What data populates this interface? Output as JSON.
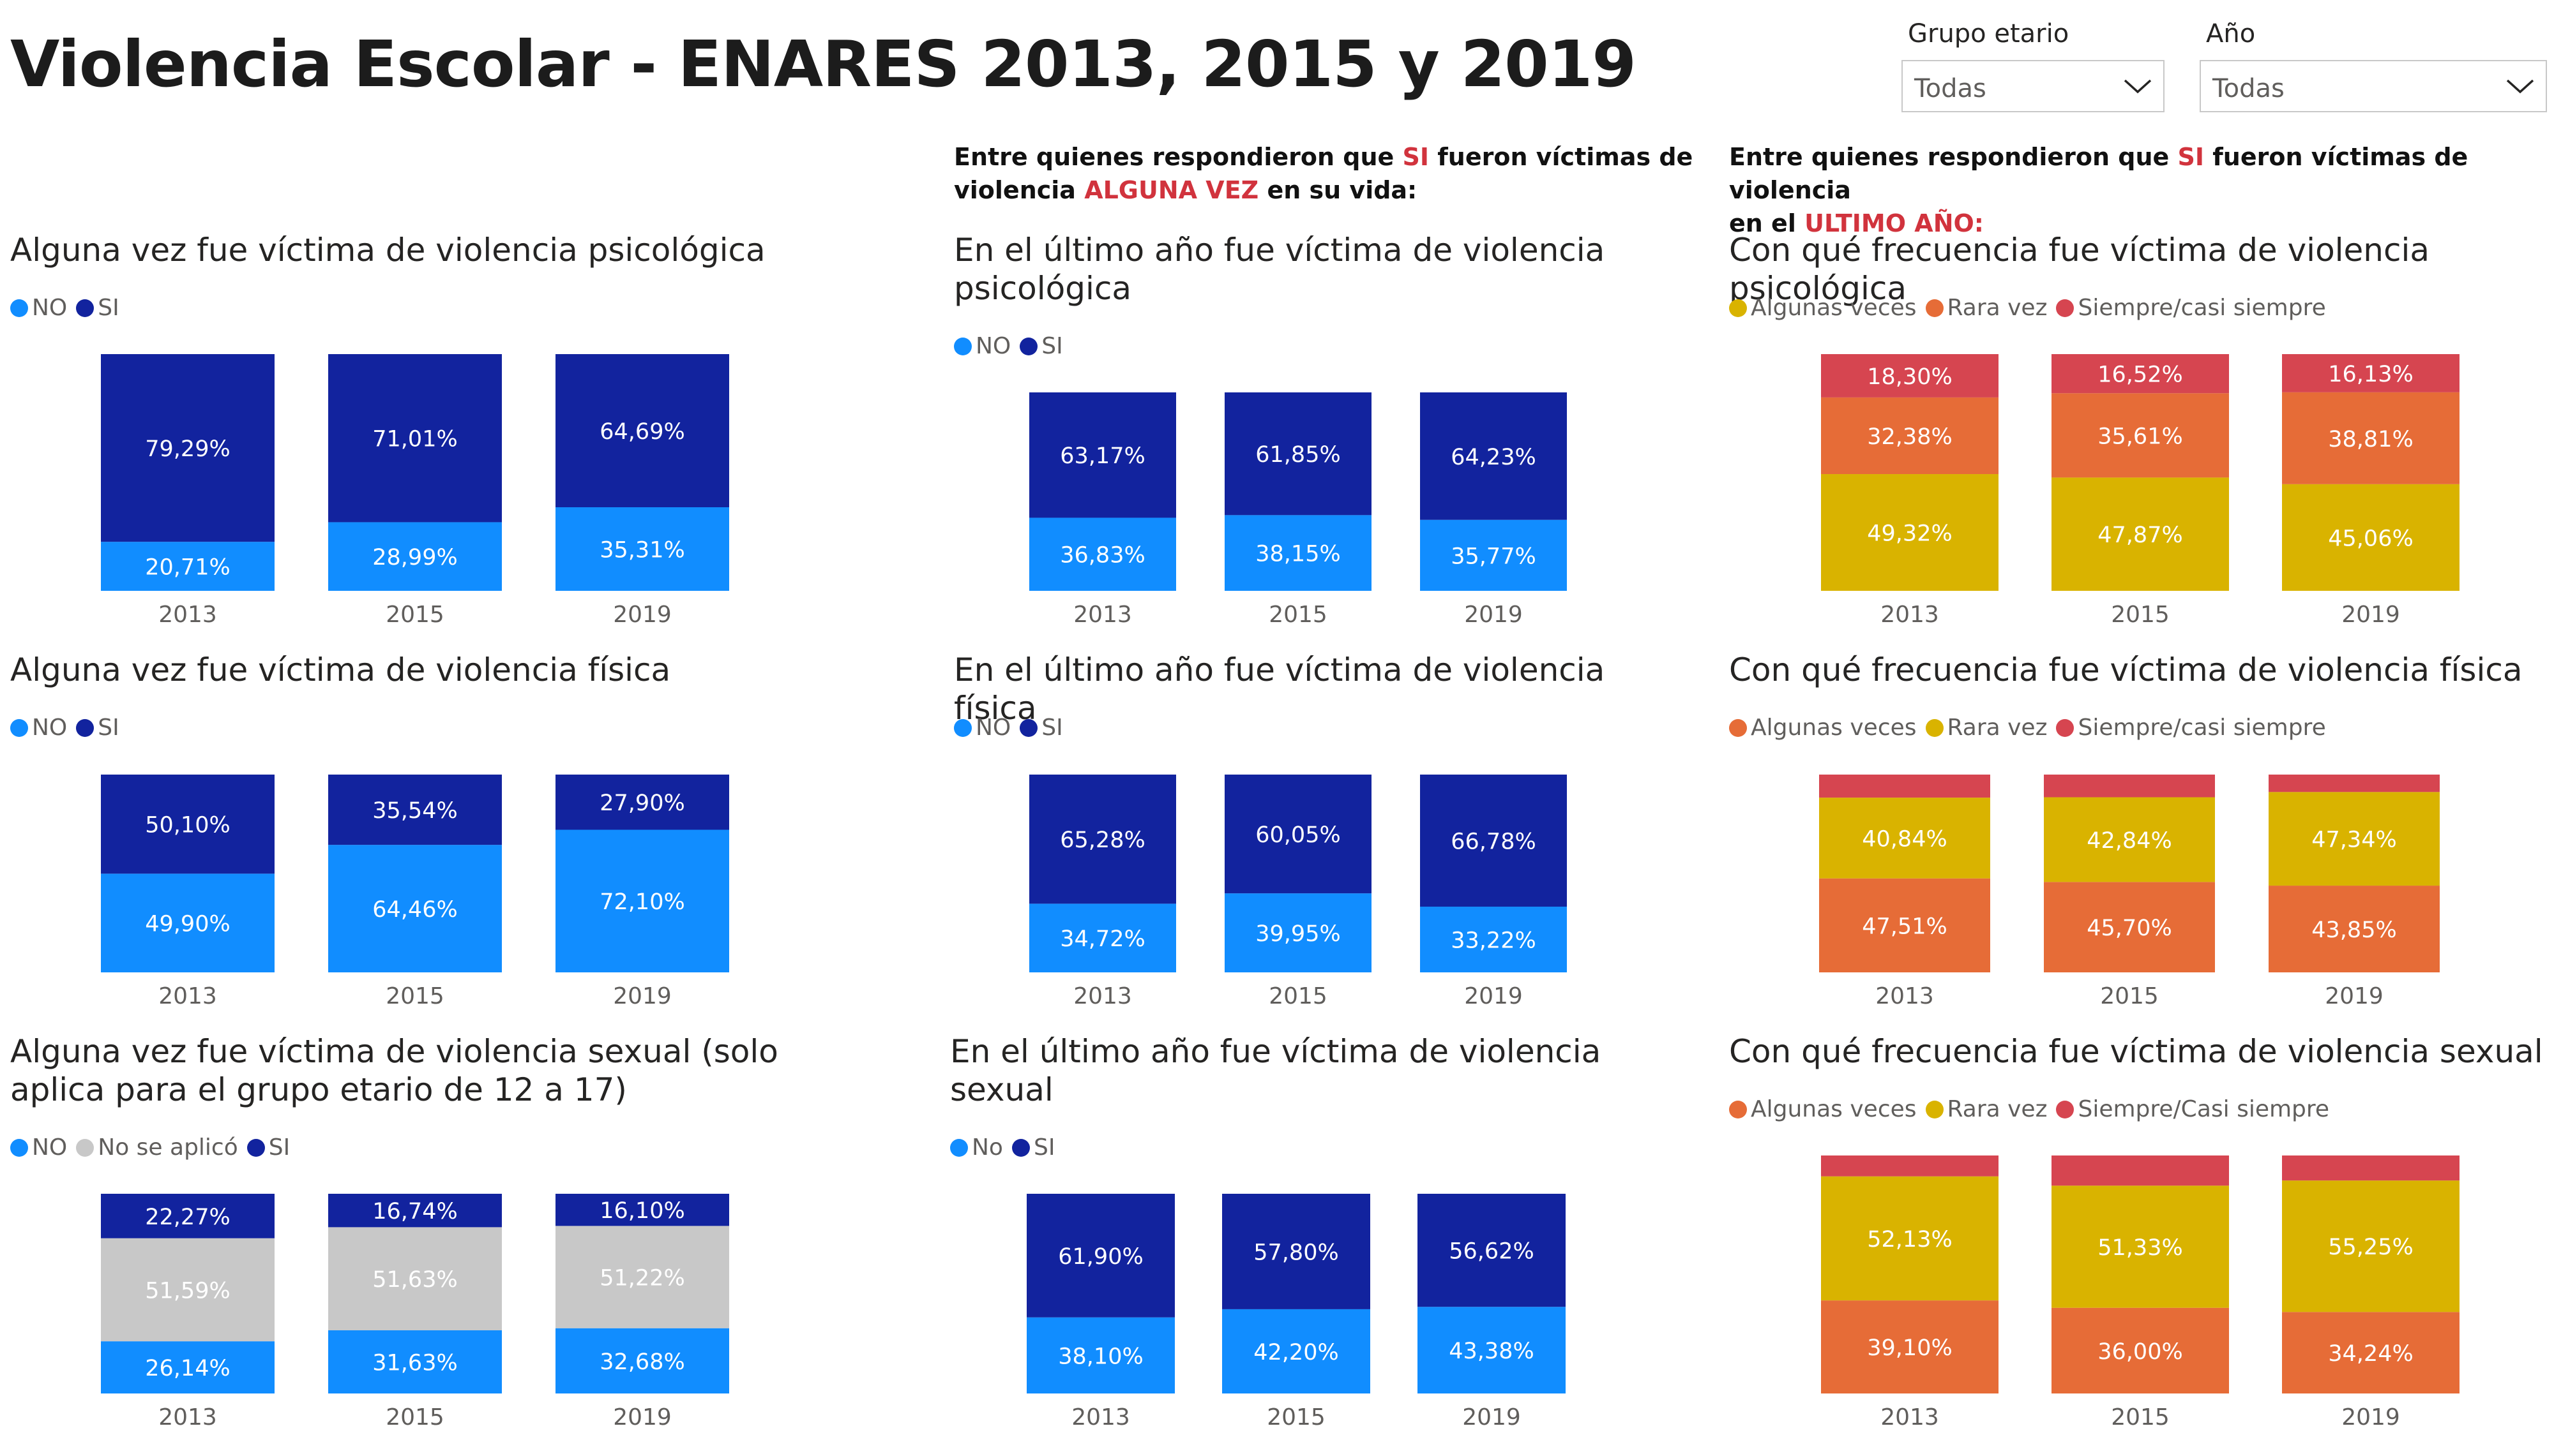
{
  "page": {
    "title": "Violencia Escolar - ENARES 2013, 2015 y 2019"
  },
  "slicers": [
    {
      "label": "Grupo etario",
      "value": "Todas"
    },
    {
      "label": "Año",
      "value": "Todas"
    }
  ],
  "section_heads": {
    "middle": {
      "line1_a": "Entre quienes respondieron que ",
      "line1_red": "SI",
      "line1_b": " fueron víctimas de",
      "line2_a": "violencia ",
      "line2_red": "ALGUNA VEZ",
      "line2_b": " en su vida:"
    },
    "right": {
      "line1_a": "Entre quienes respondieron que ",
      "line1_red": "SI",
      "line1_b": " fueron víctimas de violencia",
      "line2_a": "en el ",
      "line2_red": "ULTIMO AÑO:",
      "line2_b": ""
    }
  },
  "colors": {
    "no": "#118dff",
    "si": "#12239e",
    "no_aplico": "#c8c8c8",
    "algunas": "#d9b300",
    "rara": "#e66c37",
    "siempre": "#d64550"
  },
  "chart_data": [
    {
      "id": "c1",
      "type": "bar",
      "stacked": true,
      "title": "Alguna vez fue víctima de violencia psicológica",
      "categories": [
        "2013",
        "2015",
        "2019"
      ],
      "ylim": [
        0,
        100
      ],
      "series": [
        {
          "name": "NO",
          "color": "#118dff",
          "values": [
            20.71,
            28.99,
            35.31
          ],
          "labels": [
            "20,71%",
            "28,99%",
            "35,31%"
          ]
        },
        {
          "name": "SI",
          "color": "#12239e",
          "values": [
            79.29,
            71.01,
            64.69
          ],
          "labels": [
            "79,29%",
            "71,01%",
            "64,69%"
          ]
        }
      ]
    },
    {
      "id": "c2",
      "type": "bar",
      "stacked": true,
      "title": "En el último año fue víctima de violencia psicológica",
      "categories": [
        "2013",
        "2015",
        "2019"
      ],
      "ylim": [
        0,
        100
      ],
      "series": [
        {
          "name": "NO",
          "color": "#118dff",
          "values": [
            36.83,
            38.15,
            35.77
          ],
          "labels": [
            "36,83%",
            "38,15%",
            "35,77%"
          ]
        },
        {
          "name": "SI",
          "color": "#12239e",
          "values": [
            63.17,
            61.85,
            64.23
          ],
          "labels": [
            "63,17%",
            "61,85%",
            "64,23%"
          ]
        }
      ]
    },
    {
      "id": "c3",
      "type": "bar",
      "stacked": true,
      "title": "Con qué frecuencia fue víctima de violencia psicológica",
      "categories": [
        "2013",
        "2015",
        "2019"
      ],
      "ylim": [
        0,
        100
      ],
      "series": [
        {
          "name": "Algunas veces",
          "color": "#d9b300",
          "values": [
            49.32,
            47.87,
            45.06
          ],
          "labels": [
            "49,32%",
            "47,87%",
            "45,06%"
          ]
        },
        {
          "name": "Rara vez",
          "color": "#e66c37",
          "values": [
            32.38,
            35.61,
            38.81
          ],
          "labels": [
            "32,38%",
            "35,61%",
            "38,81%"
          ]
        },
        {
          "name": "Siempre/casi siempre",
          "color": "#d64550",
          "values": [
            18.3,
            16.52,
            16.13
          ],
          "labels": [
            "18,30%",
            "16,52%",
            "16,13%"
          ]
        }
      ]
    },
    {
      "id": "c4",
      "type": "bar",
      "stacked": true,
      "title": "Alguna vez fue víctima de violencia física",
      "categories": [
        "2013",
        "2015",
        "2019"
      ],
      "ylim": [
        0,
        100
      ],
      "series": [
        {
          "name": "NO",
          "color": "#118dff",
          "values": [
            49.9,
            64.46,
            72.1
          ],
          "labels": [
            "49,90%",
            "64,46%",
            "72,10%"
          ]
        },
        {
          "name": "SI",
          "color": "#12239e",
          "values": [
            50.1,
            35.54,
            27.9
          ],
          "labels": [
            "50,10%",
            "35,54%",
            "27,90%"
          ]
        }
      ]
    },
    {
      "id": "c5",
      "type": "bar",
      "stacked": true,
      "title": "En el último año fue víctima de violencia física",
      "categories": [
        "2013",
        "2015",
        "2019"
      ],
      "ylim": [
        0,
        100
      ],
      "series": [
        {
          "name": "NO",
          "color": "#118dff",
          "values": [
            34.72,
            39.95,
            33.22
          ],
          "labels": [
            "34,72%",
            "39,95%",
            "33,22%"
          ]
        },
        {
          "name": "SI",
          "color": "#12239e",
          "values": [
            65.28,
            60.05,
            66.78
          ],
          "labels": [
            "65,28%",
            "60,05%",
            "66,78%"
          ]
        }
      ]
    },
    {
      "id": "c6",
      "type": "bar",
      "stacked": true,
      "title": "Con qué frecuencia fue víctima de violencia física",
      "categories": [
        "2013",
        "2015",
        "2019"
      ],
      "ylim": [
        0,
        100
      ],
      "series": [
        {
          "name": "Algunas veces",
          "color": "#e66c37",
          "values": [
            47.51,
            45.7,
            43.85
          ],
          "labels": [
            "47,51%",
            "45,70%",
            "43,85%"
          ]
        },
        {
          "name": "Rara vez",
          "color": "#d9b300",
          "values": [
            40.84,
            42.84,
            47.34
          ],
          "labels": [
            "40,84%",
            "42,84%",
            "47,34%"
          ]
        },
        {
          "name": "Siempre/casi siempre",
          "color": "#d64550",
          "values": [
            11.65,
            11.46,
            8.81
          ],
          "labels": [
            "",
            "",
            ""
          ]
        }
      ]
    },
    {
      "id": "c7",
      "type": "bar",
      "stacked": true,
      "title": "Alguna vez fue víctima de violencia sexual (solo aplica para el grupo etario de 12 a 17)",
      "categories": [
        "2013",
        "2015",
        "2019"
      ],
      "ylim": [
        0,
        100
      ],
      "series": [
        {
          "name": "NO",
          "color": "#118dff",
          "values": [
            26.14,
            31.63,
            32.68
          ],
          "labels": [
            "26,14%",
            "31,63%",
            "32,68%"
          ]
        },
        {
          "name": "No se aplicó",
          "color": "#c8c8c8",
          "values": [
            51.59,
            51.63,
            51.22
          ],
          "labels": [
            "51,59%",
            "51,63%",
            "51,22%"
          ]
        },
        {
          "name": "SI",
          "color": "#12239e",
          "values": [
            22.27,
            16.74,
            16.1
          ],
          "labels": [
            "22,27%",
            "16,74%",
            "16,10%"
          ]
        }
      ]
    },
    {
      "id": "c8",
      "type": "bar",
      "stacked": true,
      "title": "En el último año fue víctima de violencia sexual",
      "categories": [
        "2013",
        "2015",
        "2019"
      ],
      "ylim": [
        0,
        100
      ],
      "series": [
        {
          "name": "No",
          "color": "#118dff",
          "values": [
            38.1,
            42.2,
            43.38
          ],
          "labels": [
            "38,10%",
            "42,20%",
            "43,38%"
          ]
        },
        {
          "name": "SI",
          "color": "#12239e",
          "values": [
            61.9,
            57.8,
            56.62
          ],
          "labels": [
            "61,90%",
            "57,80%",
            "56,62%"
          ]
        }
      ]
    },
    {
      "id": "c9",
      "type": "bar",
      "stacked": true,
      "title": "Con qué frecuencia fue víctima de violencia sexual",
      "categories": [
        "2013",
        "2015",
        "2019"
      ],
      "ylim": [
        0,
        100
      ],
      "series": [
        {
          "name": "Algunas veces",
          "color": "#e66c37",
          "values": [
            39.1,
            36.0,
            34.24
          ],
          "labels": [
            "39,10%",
            "36,00%",
            "34,24%"
          ]
        },
        {
          "name": "Rara vez",
          "color": "#d9b300",
          "values": [
            52.13,
            51.33,
            55.25
          ],
          "labels": [
            "52,13%",
            "51,33%",
            "55,25%"
          ]
        },
        {
          "name": "Siempre/Casi siempre",
          "color": "#d64550",
          "values": [
            8.77,
            12.67,
            10.51
          ],
          "labels": [
            "",
            "",
            ""
          ]
        }
      ]
    }
  ]
}
